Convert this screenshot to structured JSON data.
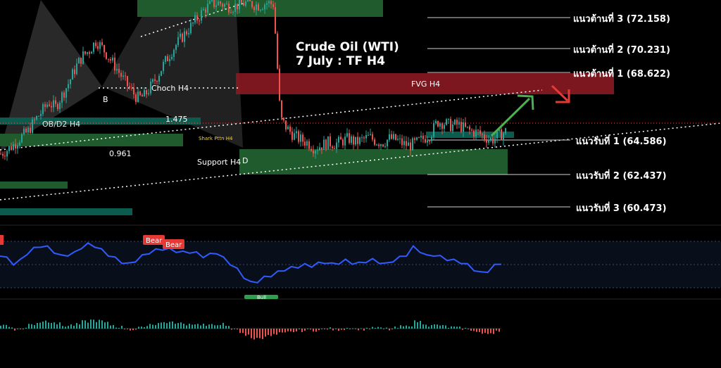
{
  "title": "Crude Oil (WTI)",
  "subtitle": "7 July : TF H4",
  "levels": [
    {
      "label": "แนวต้านที่ 3 (72.158)",
      "value": 72.158
    },
    {
      "label": "แนวต้านที่ 2 (70.231)",
      "value": 70.231
    },
    {
      "label": "แนวต้านที่ 1 (68.622)",
      "value": 68.622
    },
    {
      "label": "แนวรับที่ 1  (64.586)",
      "value": 64.586
    },
    {
      "label": "แนวรับที่ 2 (62.437)",
      "value": 62.437
    },
    {
      "label": "แนวรับที่ 3  (60.473)",
      "value": 60.473
    }
  ],
  "annotations": {
    "fvg": "FVG H4",
    "choch": "Choch H4",
    "shark": "Shark Pttn H4",
    "support": "Support H4",
    "point_b": "B",
    "point_d": "D",
    "ratio_1": "1.475",
    "ratio_2": "0.961",
    "overlap_label": "OB/D2 H4",
    "bear_1": "Bear",
    "bear_2": "Bear",
    "bull": "Bull"
  },
  "colors": {
    "background": "#000000",
    "candle_up": "#26a69a",
    "candle_down": "#ef5350",
    "fvg_zone": "#8b1a22",
    "support_zone": "#1f5b2c",
    "teal_zone": "#0b5c4f",
    "rsi_line": "#2f5bff",
    "arrow_up": "#4caf50",
    "arrow_down": "#e53935"
  },
  "chart_data": {
    "type": "candlestick",
    "title": "Crude Oil (WTI)",
    "subtitle": "7 July : TF H4",
    "price_range": [
      59.2,
      74.8
    ],
    "series": [
      {
        "values": [
          63.8,
          64.1,
          64.5,
          65.0,
          65.4,
          66.2,
          66.8,
          67.5,
          67.1,
          68.0,
          68.9,
          70.0,
          70.8,
          71.2,
          71.9,
          71.3,
          70.6,
          69.9,
          69.1,
          68.4,
          67.8,
          67.9,
          68.6,
          69.4,
          70.3,
          71.1,
          71.8,
          72.4,
          73.0,
          73.6,
          74.2,
          74.5,
          74.6,
          74.4,
          74.3,
          74.5,
          74.6,
          74.5,
          74.4,
          74.6,
          74.5,
          66.3,
          65.6,
          65.1,
          64.8,
          64.6,
          64.2,
          64.4,
          64.6,
          64.5,
          64.7,
          64.9,
          64.6,
          64.8,
          65.0,
          64.7,
          64.6,
          64.9,
          64.8,
          64.5,
          64.4,
          64.6,
          64.9,
          65.2,
          66.1,
          66.0,
          65.8,
          65.9,
          65.6,
          65.4,
          65.3,
          65.0,
          64.8,
          65.1,
          65.4
        ]
      }
    ],
    "rsi": [
      60,
      55,
      48,
      52,
      62,
      68,
      72,
      70,
      64,
      58,
      60,
      62,
      70,
      74,
      72,
      66,
      60,
      55,
      50,
      47,
      52,
      58,
      63,
      66,
      68,
      67,
      65,
      63,
      64,
      62,
      58,
      60,
      63,
      55,
      48,
      40,
      30,
      22,
      24,
      29,
      32,
      36,
      40,
      42,
      44,
      46,
      45,
      48,
      50,
      47,
      49,
      52,
      49,
      48,
      51,
      53,
      50,
      47,
      52,
      56,
      60,
      70,
      65,
      58,
      60,
      57,
      54,
      52,
      50,
      46,
      40,
      35,
      38,
      45,
      49
    ]
  }
}
